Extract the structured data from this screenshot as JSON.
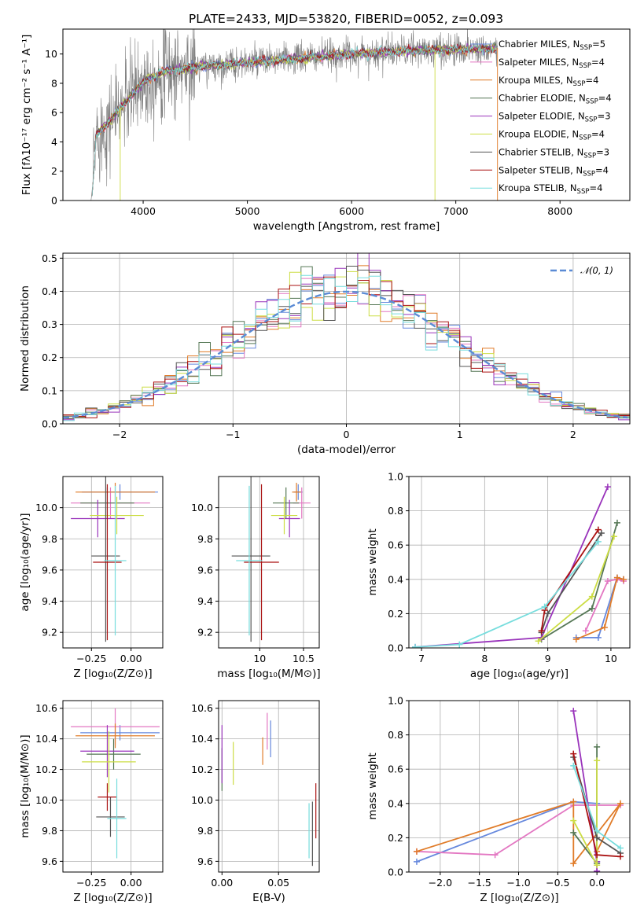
{
  "figure_title": "PLATE=2433, MJD=53820, FIBERID=0052, z=0.093",
  "series_colors": {
    "Chabrier MILES": "#6688dd",
    "Salpeter MILES": "#e377c2",
    "Kroupa MILES": "#e07b28",
    "Chabrier ELODIE": "#557755",
    "Salpeter ELODIE": "#9933bb",
    "Kroupa ELODIE": "#ccdd44",
    "Chabrier STELIB": "#555555",
    "Salpeter STELIB": "#aa1111",
    "Kroupa STELIB": "#77dddd"
  },
  "chart_data": [
    {
      "id": "spectrum",
      "type": "line",
      "xlabel": "wavelength [Angstrom, rest frame]",
      "ylabel": "Flux [fλ10⁻¹⁷ erg cm⁻² s⁻¹ A⁻¹]",
      "xlim": [
        3230,
        8670
      ],
      "ylim": [
        0,
        11.7
      ],
      "xticks": [
        4000,
        5000,
        6000,
        7000,
        8000
      ],
      "yticks": [
        0,
        2,
        4,
        6,
        8,
        10
      ],
      "data_color": "#808080",
      "observed_envelope": {
        "x": [
          3500,
          3550,
          3650,
          3800,
          3900,
          4000,
          4200,
          4500,
          5000,
          5500,
          6000,
          6500,
          7000,
          7400
        ],
        "y": [
          1.0,
          4.5,
          5.2,
          6.5,
          7.3,
          8.1,
          8.8,
          9.1,
          9.4,
          9.7,
          10.0,
          10.2,
          10.3,
          10.4
        ]
      },
      "legend": [
        {
          "label": "Chabrier MILES, N",
          "sub": "SSP",
          "suffix": "=5",
          "color": "#6688dd"
        },
        {
          "label": "Salpeter MILES, N",
          "sub": "SSP",
          "suffix": "=4",
          "color": "#e377c2"
        },
        {
          "label": "Kroupa MILES, N",
          "sub": "SSP",
          "suffix": "=4",
          "color": "#e07b28"
        },
        {
          "label": "Chabrier ELODIE, N",
          "sub": "SSP",
          "suffix": "=4",
          "color": "#557755"
        },
        {
          "label": "Salpeter ELODIE, N",
          "sub": "SSP",
          "suffix": "=3",
          "color": "#9933bb"
        },
        {
          "label": "Kroupa ELODIE, N",
          "sub": "SSP",
          "suffix": "=4",
          "color": "#ccdd44"
        },
        {
          "label": "Chabrier STELIB, N",
          "sub": "SSP",
          "suffix": "=3",
          "color": "#555555"
        },
        {
          "label": "Salpeter STELIB, N",
          "sub": "SSP",
          "suffix": "=4",
          "color": "#aa1111"
        },
        {
          "label": "Kroupa STELIB, N",
          "sub": "SSP",
          "suffix": "=4",
          "color": "#77dddd"
        }
      ]
    },
    {
      "id": "residuals",
      "type": "line",
      "xlabel": "(data-model)/error",
      "ylabel": "Normed distribution",
      "xlim": [
        -2.5,
        2.5
      ],
      "ylim": [
        0,
        0.515
      ],
      "xticks": [
        -2,
        -1,
        0,
        1,
        2
      ],
      "xtick_labels": [
        "−2",
        "−1",
        "0",
        "1",
        "2"
      ],
      "yticks": [
        0.0,
        0.1,
        0.2,
        0.3,
        0.4,
        0.5
      ],
      "bin_width": 0.1,
      "reference_curve": {
        "label": "𝒩(0, 1)",
        "mean": 0,
        "sigma": 1,
        "color": "#5b8bd5",
        "style": "dashed"
      }
    },
    {
      "id": "age-vs-Z",
      "type": "scatter",
      "xlabel": "Z [log₁₀(Z/Z⊙)]",
      "ylabel": "age  [log₁₀(age/yr)]",
      "xlim": [
        -0.43,
        0.2
      ],
      "ylim": [
        9.1,
        10.2
      ],
      "xticks": [
        -0.25,
        0.0
      ],
      "xtick_labels": [
        "−0.25",
        "0.00"
      ],
      "yticks": [
        9.2,
        9.4,
        9.6,
        9.8,
        10.0
      ],
      "points": [
        {
          "series": "Chabrier MILES",
          "x": -0.07,
          "xerr": 0.24,
          "y": 10.1,
          "yerr": 0.05
        },
        {
          "series": "Salpeter MILES",
          "x": -0.13,
          "xerr": 0.25,
          "y": 10.03,
          "yerr": 0.1
        },
        {
          "series": "Kroupa MILES",
          "x": -0.1,
          "xerr": 0.25,
          "y": 10.1,
          "yerr": 0.06
        },
        {
          "series": "Chabrier ELODIE",
          "x": -0.15,
          "xerr": 0.17,
          "y": 10.03,
          "yerr": 0.1
        },
        {
          "series": "Salpeter ELODIE",
          "x": -0.21,
          "xerr": 0.17,
          "y": 9.93,
          "yerr": 0.12
        },
        {
          "series": "Kroupa ELODIE",
          "x": -0.09,
          "xerr": 0.17,
          "y": 9.95,
          "yerr": 0.12
        },
        {
          "series": "Chabrier STELIB",
          "x": -0.16,
          "xerr": 0.09,
          "y": 9.69,
          "yerr": 0.55
        },
        {
          "series": "Salpeter STELIB",
          "x": -0.15,
          "xerr": 0.09,
          "y": 9.65,
          "yerr": 0.5
        },
        {
          "series": "Kroupa STELIB",
          "x": -0.1,
          "xerr": 0.07,
          "y": 9.66,
          "yerr": 0.48
        }
      ]
    },
    {
      "id": "age-vs-mass",
      "type": "scatter",
      "xlabel": "mass [log₁₀(M/M⊙)]",
      "ylabel": "",
      "xlim": [
        9.53,
        10.68
      ],
      "ylim": [
        9.1,
        10.2
      ],
      "xticks": [
        10.0,
        10.5
      ],
      "yticks": [
        9.2,
        9.4,
        9.6,
        9.8,
        10.0
      ],
      "points": [
        {
          "series": "Chabrier MILES",
          "x": 10.44,
          "y": 10.1,
          "xerr": 0.05,
          "yerr": 0.05
        },
        {
          "series": "Salpeter MILES",
          "x": 10.48,
          "y": 10.03,
          "xerr": 0.1,
          "yerr": 0.1
        },
        {
          "series": "Kroupa MILES",
          "x": 10.42,
          "y": 10.1,
          "xerr": 0.05,
          "yerr": 0.06
        },
        {
          "series": "Chabrier ELODIE",
          "x": 10.3,
          "y": 10.03,
          "xerr": 0.15,
          "yerr": 0.1
        },
        {
          "series": "Salpeter ELODIE",
          "x": 10.34,
          "y": 9.93,
          "xerr": 0.12,
          "yerr": 0.12
        },
        {
          "series": "Kroupa ELODIE",
          "x": 10.28,
          "y": 9.95,
          "xerr": 0.15,
          "yerr": 0.12
        },
        {
          "series": "Chabrier STELIB",
          "x": 9.9,
          "y": 9.69,
          "xerr": 0.22,
          "yerr": 0.55
        },
        {
          "series": "Salpeter STELIB",
          "x": 10.02,
          "y": 9.65,
          "xerr": 0.2,
          "yerr": 0.5
        },
        {
          "series": "Kroupa STELIB",
          "x": 9.88,
          "y": 9.66,
          "xerr": 0.15,
          "yerr": 0.48
        }
      ]
    },
    {
      "id": "massweight-vs-age",
      "type": "line",
      "xlabel": "age  [log₁₀(age/yr)]",
      "ylabel": "mass weight",
      "xlim": [
        6.8,
        10.3
      ],
      "ylim": [
        0,
        1.0
      ],
      "xticks": [
        7,
        8,
        9,
        10
      ],
      "yticks": [
        0.0,
        0.2,
        0.4,
        0.6,
        0.8,
        1.0
      ],
      "series": [
        {
          "name": "Chabrier MILES",
          "x": [
            9.45,
            9.8,
            10.1,
            10.2
          ],
          "y": [
            0.06,
            0.06,
            0.41,
            0.4
          ]
        },
        {
          "name": "Salpeter MILES",
          "x": [
            9.6,
            9.95,
            10.1,
            10.2
          ],
          "y": [
            0.1,
            0.39,
            0.4,
            0.39
          ]
        },
        {
          "name": "Kroupa MILES",
          "x": [
            9.45,
            9.9,
            10.1,
            10.2
          ],
          "y": [
            0.05,
            0.12,
            0.41,
            0.4
          ]
        },
        {
          "name": "Chabrier ELODIE",
          "x": [
            8.9,
            9.7,
            10.1
          ],
          "y": [
            0.05,
            0.23,
            0.73
          ]
        },
        {
          "name": "Salpeter ELODIE",
          "x": [
            6.9,
            8.9,
            9.95
          ],
          "y": [
            0.005,
            0.06,
            0.94
          ]
        },
        {
          "name": "Kroupa ELODIE",
          "x": [
            8.85,
            9.7,
            10.05
          ],
          "y": [
            0.04,
            0.3,
            0.65
          ]
        },
        {
          "name": "Chabrier STELIB",
          "x": [
            8.9,
            9.0,
            9.85
          ],
          "y": [
            0.09,
            0.2,
            0.67
          ]
        },
        {
          "name": "Salpeter STELIB",
          "x": [
            8.9,
            8.95,
            9.8
          ],
          "y": [
            0.1,
            0.22,
            0.69
          ]
        },
        {
          "name": "Kroupa STELIB",
          "x": [
            6.9,
            7.6,
            8.95,
            9.8
          ],
          "y": [
            0.005,
            0.02,
            0.24,
            0.62
          ]
        }
      ]
    },
    {
      "id": "mass-vs-Z",
      "type": "scatter",
      "xlabel": "Z [log₁₀(Z/Z⊙)]",
      "ylabel": "mass [log₁₀(M/M⊙)]",
      "xlim": [
        -0.43,
        0.2
      ],
      "ylim": [
        9.53,
        10.65
      ],
      "xticks": [
        -0.25,
        0.0
      ],
      "xtick_labels": [
        "−0.25",
        "0.00"
      ],
      "yticks": [
        9.6,
        9.8,
        10.0,
        10.2,
        10.4,
        10.6
      ],
      "points": [
        {
          "series": "Chabrier MILES",
          "x": -0.07,
          "xerr": 0.25,
          "y": 10.44,
          "yerr": 0.05
        },
        {
          "series": "Salpeter MILES",
          "x": -0.1,
          "xerr": 0.28,
          "y": 10.48,
          "yerr": 0.12
        },
        {
          "series": "Kroupa MILES",
          "x": -0.1,
          "xerr": 0.25,
          "y": 10.42,
          "yerr": 0.08
        },
        {
          "series": "Chabrier ELODIE",
          "x": -0.11,
          "xerr": 0.17,
          "y": 10.3,
          "yerr": 0.1
        },
        {
          "series": "Salpeter ELODIE",
          "x": -0.15,
          "xerr": 0.17,
          "y": 10.32,
          "yerr": 0.17
        },
        {
          "series": "Kroupa ELODIE",
          "x": -0.14,
          "xerr": 0.17,
          "y": 10.25,
          "yerr": 0.2
        },
        {
          "series": "Chabrier STELIB",
          "x": -0.13,
          "xerr": 0.09,
          "y": 9.89,
          "yerr": 0.13
        },
        {
          "series": "Salpeter STELIB",
          "x": -0.15,
          "xerr": 0.06,
          "y": 10.02,
          "yerr": 0.09
        },
        {
          "series": "Kroupa STELIB",
          "x": -0.09,
          "xerr": 0.06,
          "y": 9.88,
          "yerr": 0.26
        }
      ]
    },
    {
      "id": "mass-vs-EBV",
      "type": "scatter",
      "xlabel": "E(B-V)",
      "ylabel": "",
      "xlim": [
        -0.003,
        0.086
      ],
      "ylim": [
        9.53,
        10.65
      ],
      "xticks": [
        0.0,
        0.05
      ],
      "xtick_labels": [
        "0.00",
        "0.05"
      ],
      "yticks": [
        9.6,
        9.8,
        10.0,
        10.2,
        10.4,
        10.6
      ],
      "points": [
        {
          "series": "Chabrier MILES",
          "x": 0.043,
          "y": 10.4,
          "yerr": 0.12
        },
        {
          "series": "Salpeter MILES",
          "x": 0.04,
          "y": 10.45,
          "yerr": 0.12
        },
        {
          "series": "Kroupa MILES",
          "x": 0.036,
          "y": 10.32,
          "yerr": 0.09
        },
        {
          "series": "Chabrier ELODIE",
          "x": 0.0,
          "y": 10.2,
          "yerr": 0.14
        },
        {
          "series": "Salpeter ELODIE",
          "x": 0.0,
          "y": 10.3,
          "yerr": 0.19
        },
        {
          "series": "Kroupa ELODIE",
          "x": 0.01,
          "y": 10.24,
          "yerr": 0.14
        },
        {
          "series": "Chabrier STELIB",
          "x": 0.08,
          "y": 9.78,
          "yerr": 0.21
        },
        {
          "series": "Salpeter STELIB",
          "x": 0.083,
          "y": 9.93,
          "yerr": 0.18
        },
        {
          "series": "Kroupa STELIB",
          "x": 0.077,
          "y": 9.8,
          "yerr": 0.18
        }
      ]
    },
    {
      "id": "massweight-vs-Z",
      "type": "line",
      "xlabel": "Z [log₁₀(Z/Z⊙)]",
      "ylabel": "mass weight",
      "xlim": [
        -2.4,
        0.42
      ],
      "ylim": [
        0,
        1.0
      ],
      "xticks": [
        -2.0,
        -1.5,
        -1.0,
        -0.5,
        0.0
      ],
      "xtick_labels": [
        "−2.0",
        "−1.5",
        "−1.0",
        "−0.5",
        "0.0"
      ],
      "yticks": [
        0.0,
        0.2,
        0.4,
        0.6,
        0.8,
        1.0
      ],
      "series": [
        {
          "name": "Chabrier MILES",
          "x": [
            -2.3,
            -0.3,
            -0.3,
            0.0,
            0.0
          ],
          "y": [
            0.06,
            0.41,
            0.41,
            0.4,
            0.06
          ]
        },
        {
          "name": "Salpeter MILES",
          "x": [
            -2.3,
            -1.3,
            -0.3,
            0.3
          ],
          "y": [
            0.12,
            0.1,
            0.39,
            0.39
          ]
        },
        {
          "name": "Kroupa MILES",
          "x": [
            -2.3,
            -0.3,
            -0.3,
            0.3,
            0.0
          ],
          "y": [
            0.12,
            0.41,
            0.05,
            0.4,
            0.12
          ]
        },
        {
          "name": "Chabrier ELODIE",
          "x": [
            -0.3,
            0.0,
            0.0
          ],
          "y": [
            0.23,
            0.05,
            0.73
          ]
        },
        {
          "name": "Salpeter ELODIE",
          "x": [
            -0.3,
            0.0,
            0.0
          ],
          "y": [
            0.94,
            0.06,
            0.005
          ]
        },
        {
          "name": "Kroupa ELODIE",
          "x": [
            -0.3,
            0.0,
            0.0
          ],
          "y": [
            0.3,
            0.04,
            0.65
          ]
        },
        {
          "name": "Chabrier STELIB",
          "x": [
            -0.3,
            0.0,
            0.3
          ],
          "y": [
            0.67,
            0.2,
            0.11
          ]
        },
        {
          "name": "Salpeter STELIB",
          "x": [
            -0.3,
            0.0,
            0.3
          ],
          "y": [
            0.69,
            0.1,
            0.09
          ]
        },
        {
          "name": "Kroupa STELIB",
          "x": [
            -0.3,
            0.0,
            0.3
          ],
          "y": [
            0.62,
            0.24,
            0.14
          ]
        }
      ]
    }
  ]
}
